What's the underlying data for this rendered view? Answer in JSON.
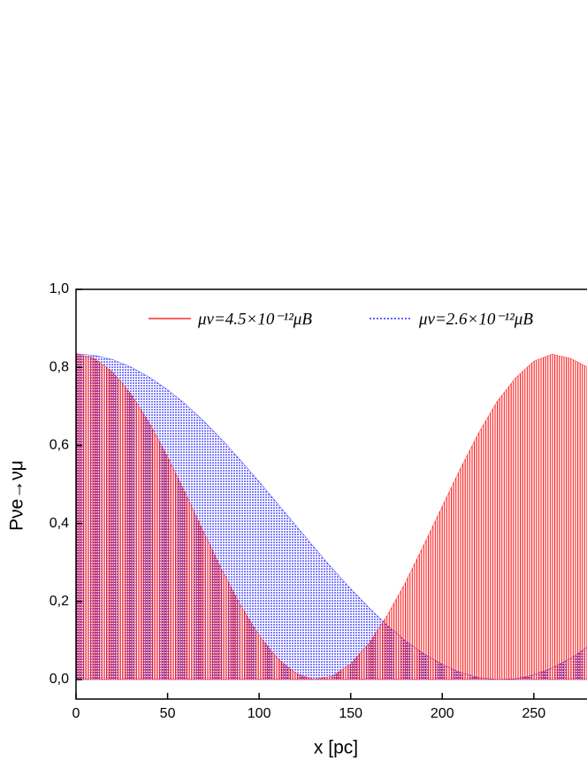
{
  "chart_data": {
    "type": "area",
    "x_label": "x [pc]",
    "y_label": "Pνe→νμ",
    "x": [
      0,
      10,
      20,
      30,
      40,
      50,
      60,
      70,
      80,
      90,
      100,
      110,
      120,
      130,
      140,
      150,
      160,
      170,
      180,
      190,
      200,
      210,
      220,
      230,
      240,
      250,
      260,
      270,
      280
    ],
    "series": [
      {
        "name": "μν=4.5×10⁻¹²μB",
        "color": "#ff0000",
        "values": [
          0.835,
          0.823,
          0.788,
          0.732,
          0.658,
          0.571,
          0.475,
          0.375,
          0.278,
          0.189,
          0.113,
          0.054,
          0.016,
          0,
          0.009,
          0.04,
          0.093,
          0.165,
          0.25,
          0.346,
          0.444,
          0.542,
          0.633,
          0.713,
          0.773,
          0.816,
          0.834,
          0.823,
          0.799
        ]
      },
      {
        "name": "μν=2.6×10⁻¹²μB",
        "color": "#0000ff",
        "values": [
          0.835,
          0.831,
          0.82,
          0.801,
          0.775,
          0.743,
          0.705,
          0.661,
          0.613,
          0.561,
          0.507,
          0.451,
          0.395,
          0.339,
          0.284,
          0.233,
          0.184,
          0.139,
          0.099,
          0.066,
          0.039,
          0.018,
          0.005,
          0,
          0.002,
          0.012,
          0.03,
          0.054,
          0.086
        ]
      }
    ],
    "xlim": [
      0,
      280
    ],
    "ylim": [
      -0.05,
      1.0
    ],
    "xticks": [
      0,
      50,
      100,
      150,
      200,
      250
    ],
    "yticks": [
      {
        "value": 0.0,
        "label": "0,0"
      },
      {
        "value": 0.2,
        "label": "0,2"
      },
      {
        "value": 0.4,
        "label": "0,4"
      },
      {
        "value": 0.6,
        "label": "0,6"
      },
      {
        "value": 0.8,
        "label": "0,8"
      },
      {
        "value": 1.0,
        "label": "1,0"
      }
    ],
    "grid": false
  }
}
